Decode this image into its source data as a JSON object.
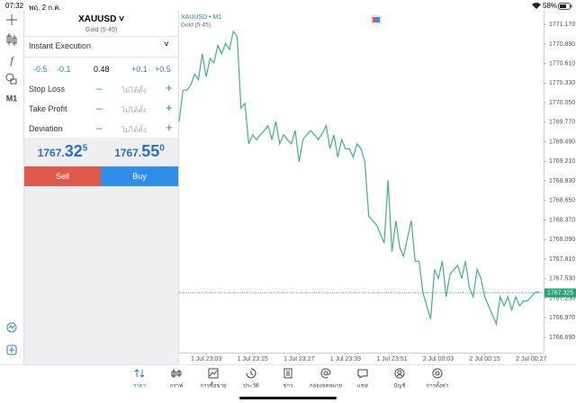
{
  "status_bar": {
    "time": "07:32",
    "date": "พฤ. 2 ก.ค.",
    "battery": "58%"
  },
  "toolbar": {
    "timeframe": "M1"
  },
  "order_panel": {
    "symbol": "XAUUSD",
    "description": "Gold (5-45)",
    "execution": "Instant Execution",
    "volume_steps": [
      "-0.5",
      "-0.1",
      "+0.1",
      "+0.5"
    ],
    "volume": "0.48",
    "rows": [
      {
        "label": "Stop Loss",
        "value": "ไม่ได้ตั้ง"
      },
      {
        "label": "Take Profit",
        "value": "ไม่ได้ตั้ง"
      },
      {
        "label": "Deviation",
        "value": "ไม่ได้ตั้ง"
      }
    ],
    "bid": {
      "prefix": "1767.",
      "big": "32",
      "small": "5"
    },
    "ask": {
      "prefix": "1767.",
      "big": "55",
      "small": "0"
    },
    "sell": "Sell",
    "buy": "Buy"
  },
  "chart": {
    "type": "line",
    "title": "XAUUSD • M1",
    "subtitle": "Gold (5-45)",
    "color": "#43b087",
    "values": [
      1769.78,
      1770.23,
      1770.23,
      1770.3,
      1770.46,
      1770.38,
      1770.75,
      1770.42,
      1770.68,
      1770.62,
      1770.87,
      1770.75,
      1770.9,
      1770.81,
      1771.07,
      1771.0,
      1769.97,
      1770.04,
      1769.46,
      1769.59,
      1769.52,
      1769.59,
      1769.65,
      1769.72,
      1769.52,
      1769.78,
      1769.46,
      1769.59,
      1769.52,
      1769.46,
      1769.65,
      1769.2,
      1769.52,
      1769.59,
      1769.65,
      1769.59,
      1769.52,
      1769.61,
      1769.72,
      1769.39,
      1769.59,
      1769.27,
      1769.52,
      1769.39,
      1769.39,
      1769.27,
      1769.46,
      1769.39,
      1769.2,
      1768.43,
      1768.36,
      1768.3,
      1768.17,
      1768.04,
      1768.94,
      1767.91,
      1768.36,
      1767.98,
      1767.85,
      1768.11,
      1768.36,
      1767.78,
      1767.78,
      1767.33,
      1767.14,
      1766.95,
      1767.66,
      1767.53,
      1767.78,
      1767.27,
      1767.59,
      1767.66,
      1767.72,
      1767.53,
      1767.78,
      1767.4,
      1767.27,
      1767.66,
      1767.53,
      1767.27,
      1767.14,
      1767.01,
      1766.88,
      1767.27,
      1767.14,
      1767.27,
      1767.08,
      1767.27,
      1767.14,
      1767.21,
      1767.21,
      1767.27,
      1767.33,
      1767.34
    ],
    "xlim": [
      0,
      94.2
    ],
    "xticks": [
      {
        "value": 7,
        "label": "1 Jul 23:03"
      },
      {
        "value": 19,
        "label": "1 Jul 23:15"
      },
      {
        "value": 31,
        "label": "1 Jul 23:27"
      },
      {
        "value": 43,
        "label": "1 Jul 23:39"
      },
      {
        "value": 55,
        "label": "1 Jul 23:51"
      },
      {
        "value": 67,
        "label": "2 Jul 00:03"
      },
      {
        "value": 79,
        "label": "2 Jul 00:15"
      },
      {
        "value": 91,
        "label": "2 Jul 00:27"
      }
    ],
    "ylim": [
      1766.47,
      1771.34
    ],
    "yticks": [
      {
        "value": 1771.17,
        "label": "1771.170"
      },
      {
        "value": 1770.89,
        "label": "1770.890"
      },
      {
        "value": 1770.61,
        "label": "1770.610"
      },
      {
        "value": 1770.33,
        "label": "1770.330"
      },
      {
        "value": 1770.05,
        "label": "1770.050"
      },
      {
        "value": 1769.77,
        "label": "1769.770"
      },
      {
        "value": 1769.49,
        "label": "1769.490"
      },
      {
        "value": 1769.21,
        "label": "1769.210"
      },
      {
        "value": 1768.93,
        "label": "1768.930"
      },
      {
        "value": 1768.65,
        "label": "1768.650"
      },
      {
        "value": 1768.37,
        "label": "1768.370"
      },
      {
        "value": 1768.09,
        "label": "1768.090"
      },
      {
        "value": 1767.81,
        "label": "1767.810"
      },
      {
        "value": 1767.53,
        "label": "1767.530"
      },
      {
        "value": 1767.25,
        "label": "1767.250"
      },
      {
        "value": 1766.97,
        "label": "1766.970"
      },
      {
        "value": 1766.69,
        "label": "1766.690"
      }
    ],
    "grid": false,
    "price_line": {
      "value": 1767.325,
      "label": "1767.325",
      "color": "#26a17b"
    }
  },
  "nav": [
    "ราคา",
    "กราฟ",
    "การซื้อขาย",
    "ประวัติ",
    "ข่าว",
    "กล่องจดหมาย",
    "แชท",
    "บัญชี",
    "การตั้งค่า"
  ]
}
